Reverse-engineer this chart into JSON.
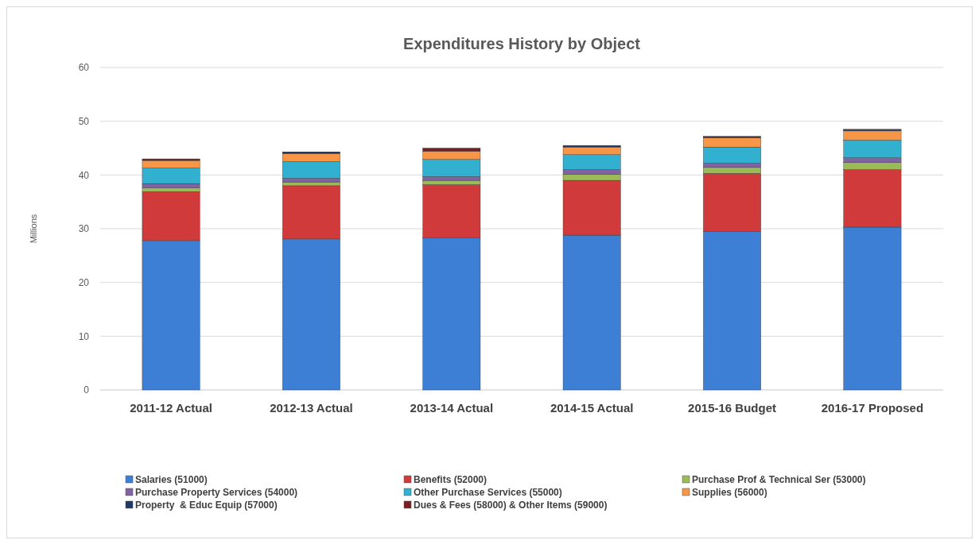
{
  "chart_data": {
    "type": "bar",
    "title": "Expenditures History by Object",
    "ylabel": "Millions",
    "categories": [
      "2011-12 Actual",
      "2012-13 Actual",
      "2013-14 Actual",
      "2014-15 Actual",
      "2015-16 Budget",
      "2016-17 Proposed"
    ],
    "stacked": true,
    "ylim": [
      0,
      60
    ],
    "yticks": [
      0,
      10,
      20,
      30,
      40,
      50,
      60
    ],
    "grid": "y",
    "legend": "bottom",
    "series": [
      {
        "name": "Salaries (51000)",
        "color": "#3d7fd4",
        "values": [
          27.8,
          28.1,
          28.3,
          28.8,
          29.5,
          30.3
        ]
      },
      {
        "name": "Benefits (52000)",
        "color": "#d03a3a",
        "values": [
          9.1,
          9.9,
          9.9,
          10.2,
          10.8,
          10.7
        ]
      },
      {
        "name": "Purchase Prof & Technical Ser (53000)",
        "color": "#9bbb59",
        "values": [
          0.7,
          0.7,
          0.8,
          1.1,
          1.1,
          1.3
        ]
      },
      {
        "name": "Purchase Property Services (54000)",
        "color": "#8064a2",
        "values": [
          0.8,
          0.7,
          0.7,
          0.9,
          0.8,
          0.9
        ]
      },
      {
        "name": "Other Purchase Services (55000)",
        "color": "#31b0d0",
        "values": [
          2.9,
          3.1,
          3.2,
          2.8,
          3.0,
          3.3
        ]
      },
      {
        "name": "Supplies (56000)",
        "color": "#f79646",
        "values": [
          1.4,
          1.5,
          1.5,
          1.4,
          1.7,
          1.7
        ]
      },
      {
        "name": "Property  & Educ Equip (57000)",
        "color": "#1f3864",
        "values": [
          0.2,
          0.2,
          null,
          0.2,
          0.2,
          0.2
        ]
      },
      {
        "name": "Dues & Fees (58000) & Other Items (59000)",
        "color": "#7a1f1f",
        "values": [
          0.1,
          0.1,
          0.6,
          0.1,
          0.1,
          0.1
        ]
      }
    ]
  }
}
